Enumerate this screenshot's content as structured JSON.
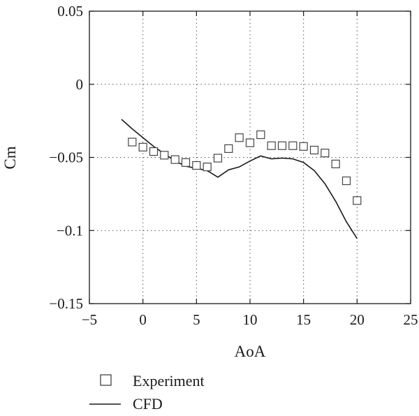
{
  "chart_data": {
    "type": "scatter",
    "xlabel": "AoA",
    "ylabel": "Cm",
    "xlim": [
      -5,
      25
    ],
    "ylim": [
      -0.15,
      0.05
    ],
    "x_ticks": [
      -5,
      0,
      5,
      10,
      15,
      20,
      25
    ],
    "x_tick_labels": [
      "−5",
      "0",
      "5",
      "10",
      "15",
      "20",
      "25"
    ],
    "y_ticks": [
      -0.15,
      -0.1,
      -0.05,
      0,
      0.05
    ],
    "y_tick_labels": [
      "−0.15",
      "−0.1",
      "−0.05",
      "0",
      "0.05"
    ],
    "grid": "dotted",
    "legend_position": "bottom-left",
    "series": [
      {
        "name": "Experiment",
        "marker": "open-square",
        "color": "#444444",
        "x": [
          -1,
          0,
          1,
          2,
          3,
          4,
          5,
          6,
          7,
          8,
          9,
          10,
          11,
          12,
          13,
          14,
          15,
          16,
          17,
          18,
          19,
          20
        ],
        "y": [
          -0.0395,
          -0.043,
          -0.046,
          -0.0485,
          -0.0515,
          -0.0535,
          -0.0555,
          -0.0565,
          -0.0505,
          -0.044,
          -0.0365,
          -0.04,
          -0.0345,
          -0.042,
          -0.042,
          -0.042,
          -0.0425,
          -0.045,
          -0.047,
          -0.0545,
          -0.066,
          -0.0795
        ]
      },
      {
        "name": "CFD",
        "marker": "line",
        "color": "#1a1a1a",
        "x": [
          -2,
          -1,
          0,
          1,
          2,
          3,
          4,
          5,
          6,
          7,
          8,
          9,
          10,
          11,
          12,
          13,
          14,
          15,
          16,
          17,
          18,
          19,
          20
        ],
        "y": [
          -0.024,
          -0.0305,
          -0.0365,
          -0.0425,
          -0.0475,
          -0.0525,
          -0.056,
          -0.0575,
          -0.059,
          -0.0635,
          -0.0585,
          -0.0565,
          -0.0525,
          -0.049,
          -0.051,
          -0.0505,
          -0.051,
          -0.0535,
          -0.059,
          -0.068,
          -0.08,
          -0.094,
          -0.1055
        ]
      }
    ]
  }
}
